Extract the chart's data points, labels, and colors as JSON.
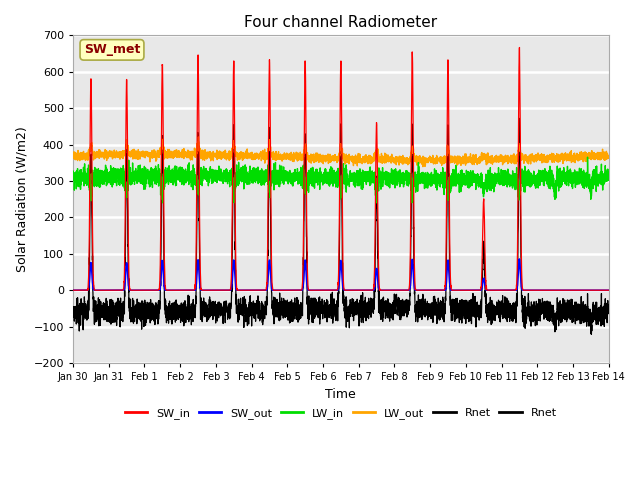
{
  "title": "Four channel Radiometer",
  "xlabel": "Time",
  "ylabel": "Solar Radiation (W/m2)",
  "ylim": [
    -200,
    700
  ],
  "yticks": [
    -200,
    -100,
    0,
    100,
    200,
    300,
    400,
    500,
    600,
    700
  ],
  "xtick_labels": [
    "Jan 30",
    "Jan 31",
    "Feb 1",
    "Feb 2",
    "Feb 3",
    "Feb 4",
    "Feb 5",
    "Feb 6",
    "Feb 7",
    "Feb 8",
    "Feb 9",
    "Feb 10",
    "Feb 11",
    "Feb 12",
    "Feb 13",
    "Feb 14"
  ],
  "annotation_text": "SW_met",
  "annotation_color": "#8B0000",
  "annotation_bg": "#FFFFC0",
  "bg_color": "#E8E8E8",
  "colors": {
    "SW_in": "#FF0000",
    "SW_out": "#0000FF",
    "LW_in": "#00DD00",
    "LW_out": "#FFA500",
    "Rnet1": "#000000",
    "Rnet2": "#000000"
  },
  "sw_in_peaks": [
    580,
    580,
    620,
    640,
    630,
    630,
    630,
    630,
    460,
    650,
    630,
    250,
    660,
    0,
    0
  ],
  "lw_in_base": 310,
  "lw_out_base": 370,
  "night_rnet": -50,
  "legend_labels": [
    "SW_in",
    "SW_out",
    "LW_in",
    "LW_out",
    "Rnet",
    "Rnet"
  ]
}
